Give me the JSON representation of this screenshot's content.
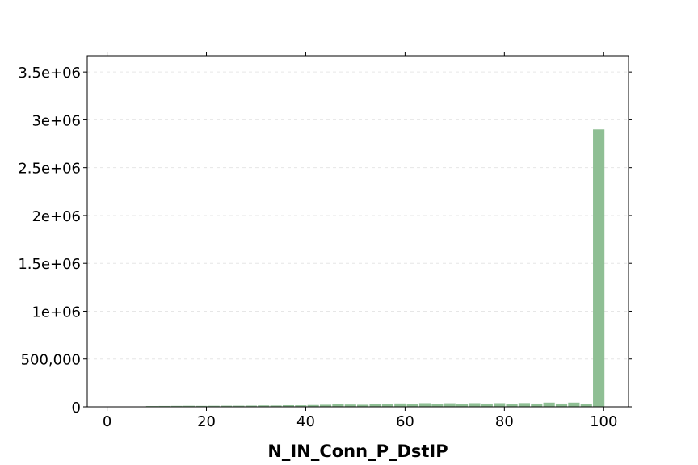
{
  "chart_data": {
    "type": "bar",
    "title": "",
    "xlabel": "N_IN_Conn_P_DstIP",
    "ylabel": "",
    "xlim": [
      -4,
      105
    ],
    "ylim": [
      0,
      3670000
    ],
    "grid": "horizontal-dashed",
    "bar_color": "#8fbf94",
    "x_ticks": [
      0,
      20,
      40,
      60,
      80,
      100
    ],
    "x_tick_labels": [
      "0",
      "20",
      "40",
      "60",
      "80",
      "100"
    ],
    "y_ticks": [
      0,
      500000,
      1000000,
      1500000,
      2000000,
      2500000,
      3000000,
      3500000
    ],
    "y_tick_labels": [
      "0",
      "500,000",
      "1e+06",
      "1.5e+06",
      "2e+06",
      "2.5e+06",
      "3e+06",
      "3.5e+06"
    ],
    "bin_width": 2.5,
    "x": [
      9,
      11.5,
      14,
      16.5,
      19,
      21.5,
      24,
      26.5,
      29,
      31.5,
      34,
      36.5,
      39,
      41.5,
      44,
      46.5,
      49,
      51.5,
      54,
      56.5,
      59,
      61.5,
      64,
      66.5,
      69,
      71.5,
      74,
      76.5,
      79,
      81.5,
      84,
      86.5,
      89,
      91.5,
      94,
      96.5,
      99
    ],
    "values": [
      8000,
      9000,
      10000,
      11000,
      10000,
      11000,
      12000,
      12000,
      13000,
      15000,
      14000,
      17000,
      16000,
      19000,
      22000,
      26000,
      24000,
      22000,
      28000,
      26000,
      35000,
      32000,
      38000,
      33000,
      37000,
      29000,
      38000,
      34000,
      38000,
      33000,
      39000,
      34000,
      44000,
      34000,
      44000,
      30000,
      2900000
    ]
  }
}
